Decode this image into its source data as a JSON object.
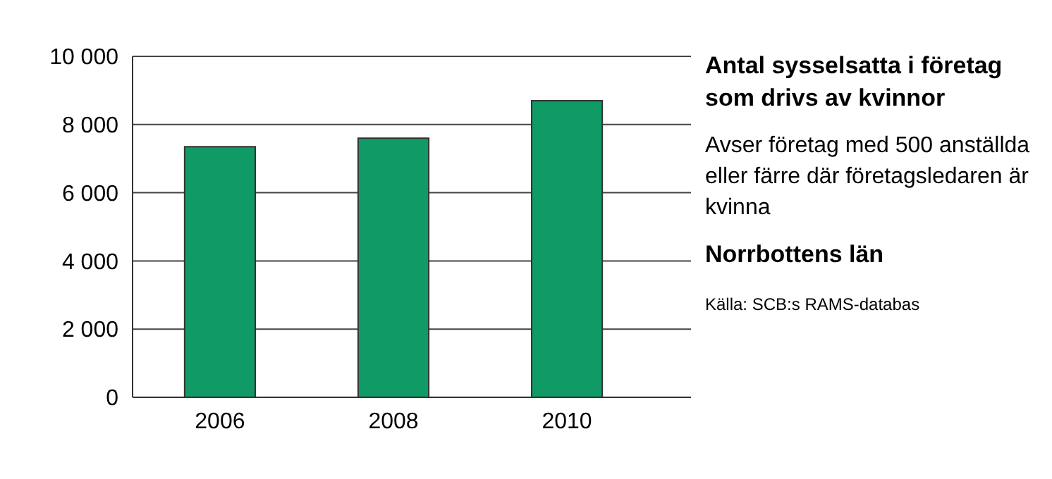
{
  "chart_data": {
    "type": "bar",
    "title": "Antal sysselsatta i företag som drivs av kvinnor",
    "subtitle": "Avser företag med 500 anställda eller färre där företagsledaren är kvinna",
    "annotations": [
      "Norrbottens län",
      "Källa: SCB:s RAMS-databas"
    ],
    "categories": [
      "2006",
      "2008",
      "2010"
    ],
    "values": [
      7350,
      7600,
      8700
    ],
    "color": "#109a66",
    "ylim": [
      0,
      10000
    ],
    "yticks": [
      {
        "value": 0,
        "label": "0"
      },
      {
        "value": 2000,
        "label": "2 000"
      },
      {
        "value": 4000,
        "label": "4 000"
      },
      {
        "value": 6000,
        "label": "6 000"
      },
      {
        "value": 8000,
        "label": "8 000"
      },
      {
        "value": 10000,
        "label": "10 000"
      }
    ],
    "grid": "y"
  }
}
